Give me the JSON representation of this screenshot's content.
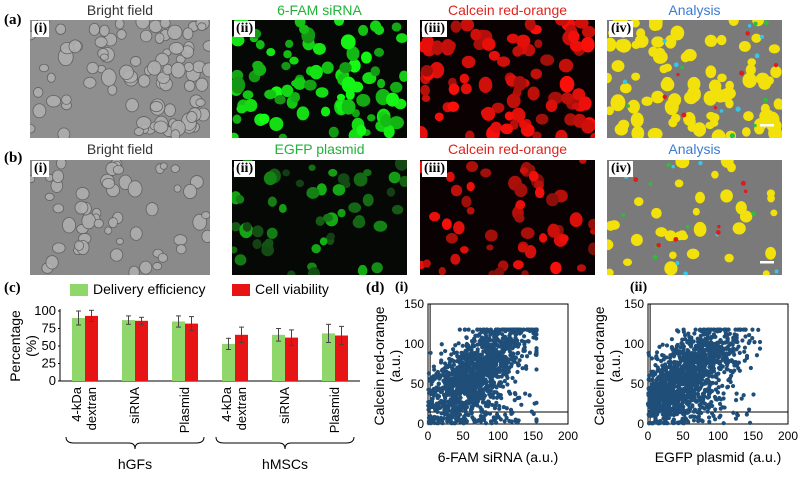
{
  "rows": [
    {
      "label": "(a)",
      "panels": [
        {
          "roman": "(i)",
          "title": "Bright field",
          "type": "bf"
        },
        {
          "roman": "(ii)",
          "title": "6-FAM siRNA",
          "type": "green"
        },
        {
          "roman": "(iii)",
          "title": "Calcein red-orange",
          "type": "red"
        },
        {
          "roman": "(iv)",
          "title": "Analysis",
          "type": "analysis"
        }
      ]
    },
    {
      "label": "(b)",
      "panels": [
        {
          "roman": "(i)",
          "title": "Bright field",
          "type": "bf"
        },
        {
          "roman": "(ii)",
          "title": "EGFP plasmid",
          "type": "green"
        },
        {
          "roman": "(iii)",
          "title": "Calcein red-orange",
          "type": "red"
        },
        {
          "roman": "(iv)",
          "title": "Analysis",
          "type": "analysis"
        }
      ]
    }
  ],
  "panel_c": {
    "label": "(c)",
    "legend": [
      {
        "name": "Delivery efficiency",
        "color": "#8fd66b"
      },
      {
        "name": "Cell viability",
        "color": "#e61414"
      }
    ],
    "ylabel": "Percentage (%)",
    "yticks": [
      "100",
      "75",
      "50",
      "25",
      "0"
    ],
    "groups": [
      {
        "name": "hGFs",
        "categories": [
          "4-kDa dextran",
          "siRNA",
          "Plasmid"
        ]
      },
      {
        "name": "hMSCs",
        "categories": [
          "4-kDa dextran",
          "siRNA",
          "Plasmid"
        ]
      }
    ]
  },
  "panel_d": {
    "label": "(d)",
    "plots": [
      {
        "roman": "(i)",
        "xlabel": "6-FAM siRNA (a.u.)",
        "ylabel": "Calcein red-orange (a.u.)",
        "xticks": [
          "0",
          "50",
          "100",
          "150",
          "200"
        ],
        "yticks": [
          "150",
          "100",
          "50",
          "0"
        ]
      },
      {
        "roman": "(ii)",
        "xlabel": "EGFP plasmid (a.u.)",
        "ylabel": "Calcein red-orange (a.u.)",
        "xticks": [
          "0",
          "50",
          "100",
          "150",
          "200"
        ],
        "yticks": [
          "150",
          "100",
          "50",
          "0"
        ]
      }
    ]
  },
  "chart_data": [
    {
      "type": "bar",
      "title": "",
      "ylabel": "Percentage (%)",
      "ylim": [
        0,
        100
      ],
      "categories": [
        "hGFs 4-kDa dextran",
        "hGFs siRNA",
        "hGFs Plasmid",
        "hMSCs 4-kDa dextran",
        "hMSCs siRNA",
        "hMSCs Plasmid"
      ],
      "series": [
        {
          "name": "Delivery efficiency",
          "color": "#8fd66b",
          "values": [
            90,
            87,
            85,
            53,
            66,
            68
          ],
          "errors": [
            10,
            6,
            8,
            8,
            9,
            13
          ]
        },
        {
          "name": "Cell viability",
          "color": "#e61414",
          "values": [
            93,
            86,
            82,
            66,
            62,
            65
          ],
          "errors": [
            8,
            5,
            10,
            11,
            11,
            13
          ]
        }
      ]
    },
    {
      "type": "scatter",
      "xlabel": "6-FAM siRNA (a.u.)",
      "ylabel": "Calcein red-orange (a.u.)",
      "xlim": [
        0,
        200
      ],
      "ylim": [
        0,
        150
      ],
      "threshold": {
        "x": 3,
        "y": 15
      },
      "color": "#1f4e79"
    },
    {
      "type": "scatter",
      "xlabel": "EGFP plasmid (a.u.)",
      "ylabel": "Calcein red-orange (a.u.)",
      "xlim": [
        0,
        200
      ],
      "ylim": [
        0,
        150
      ],
      "threshold": {
        "x": 3,
        "y": 15
      },
      "color": "#1f4e79"
    }
  ]
}
